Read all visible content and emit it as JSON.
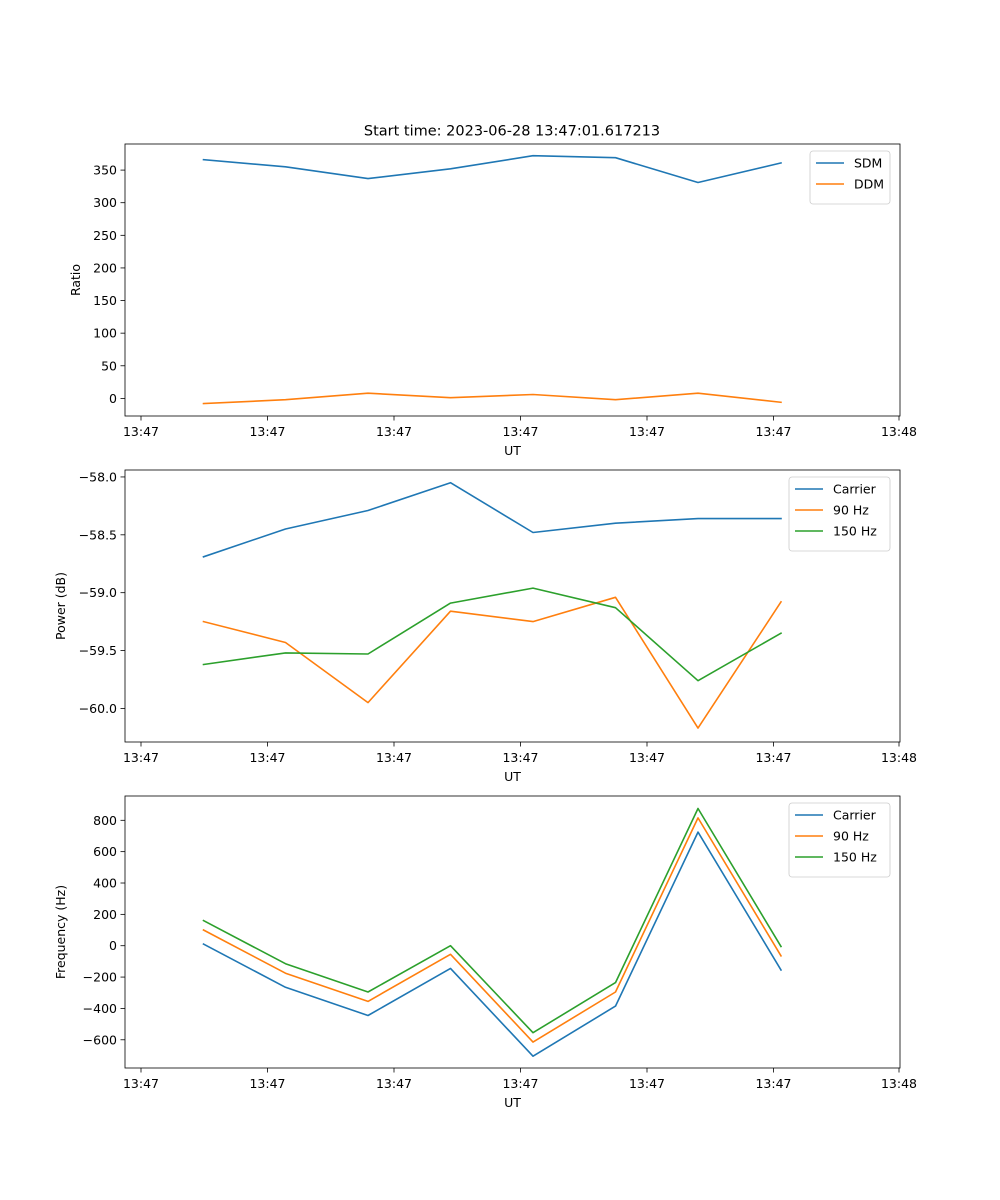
{
  "figure_title": "Start time: 2023-06-28 13:47:01.617213",
  "colors": {
    "blue": "#1f77b4",
    "orange": "#ff7f0e",
    "green": "#2ca02c"
  },
  "chart_data": [
    {
      "type": "line",
      "xlabel": "UT",
      "ylabel": "Ratio",
      "x_ticks": [
        "13:47",
        "13:47",
        "13:47",
        "13:47",
        "13:47",
        "13:47",
        "13:48"
      ],
      "y_ticks": [
        "0",
        "50",
        "100",
        "150",
        "200",
        "250",
        "300",
        "350"
      ],
      "ylim": [
        -27,
        390
      ],
      "legend_position": "upper right",
      "series": [
        {
          "name": "SDM",
          "color": "#1f77b4",
          "values": [
            366,
            355,
            337,
            352,
            372,
            369,
            331,
            361
          ]
        },
        {
          "name": "DDM",
          "color": "#ff7f0e",
          "values": [
            -8,
            -2,
            8,
            1,
            6,
            -2,
            8,
            -6
          ]
        }
      ]
    },
    {
      "type": "line",
      "xlabel": "UT",
      "ylabel": "Power (dB)",
      "x_ticks": [
        "13:47",
        "13:47",
        "13:47",
        "13:47",
        "13:47",
        "13:47",
        "13:48"
      ],
      "y_ticks": [
        "−60.0",
        "−59.5",
        "−59.0",
        "−58.5",
        "−58.0"
      ],
      "ylim": [
        -60.29,
        -57.94
      ],
      "legend_position": "upper right",
      "series": [
        {
          "name": "Carrier",
          "color": "#1f77b4",
          "values": [
            -58.69,
            -58.45,
            -58.29,
            -58.05,
            -58.48,
            -58.4,
            -58.36,
            -58.36
          ]
        },
        {
          "name": "90 Hz",
          "color": "#ff7f0e",
          "values": [
            -59.25,
            -59.43,
            -59.95,
            -59.16,
            -59.25,
            -59.04,
            -60.17,
            -59.08
          ]
        },
        {
          "name": "150 Hz",
          "color": "#2ca02c",
          "values": [
            -59.62,
            -59.52,
            -59.53,
            -59.09,
            -58.96,
            -59.13,
            -59.76,
            -59.35
          ]
        }
      ]
    },
    {
      "type": "line",
      "xlabel": "UT",
      "ylabel": "Frequency (Hz)",
      "x_ticks": [
        "13:47",
        "13:47",
        "13:47",
        "13:47",
        "13:47",
        "13:47",
        "13:48"
      ],
      "y_ticks": [
        "−600",
        "−400",
        "−200",
        "0",
        "200",
        "400",
        "600",
        "800"
      ],
      "ylim": [
        -780,
        955
      ],
      "legend_position": "upper right",
      "series": [
        {
          "name": "Carrier",
          "color": "#1f77b4",
          "values": [
            10,
            -265,
            -445,
            -145,
            -705,
            -385,
            725,
            -155
          ]
        },
        {
          "name": "90 Hz",
          "color": "#ff7f0e",
          "values": [
            100,
            -175,
            -355,
            -55,
            -615,
            -295,
            815,
            -65
          ]
        },
        {
          "name": "150 Hz",
          "color": "#2ca02c",
          "values": [
            160,
            -115,
            -295,
            0,
            -555,
            -235,
            875,
            -5
          ]
        }
      ]
    }
  ]
}
